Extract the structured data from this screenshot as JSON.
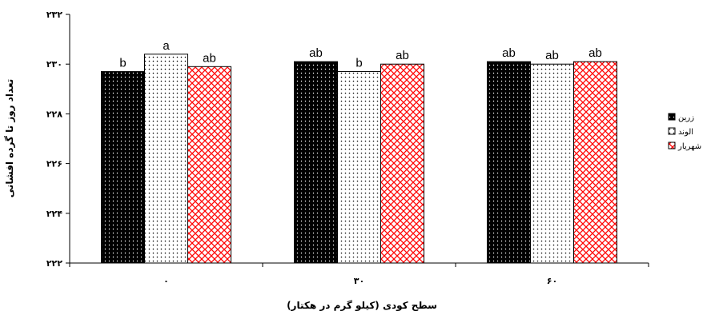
{
  "chart_data": {
    "type": "bar",
    "title": "",
    "xlabel": "سطح کودی (کیلو گرم در هکتار)",
    "ylabel": "تعداد روز تا گرده افشانی",
    "categories": [
      "۰",
      "۳۰",
      "۶۰"
    ],
    "ylim": [
      222,
      232
    ],
    "y_ticks": [
      222,
      224,
      226,
      228,
      230,
      232
    ],
    "y_tick_labels": [
      "۲۲۲",
      "۲۲۴",
      "۲۲۶",
      "۲۲۸",
      "۲۳۰",
      "۲۳۲"
    ],
    "grid": false,
    "legend_position": "right",
    "series": [
      {
        "name": "زرین",
        "values": [
          229.7,
          230.1,
          230.1
        ],
        "labels": [
          "b",
          "ab",
          "ab"
        ],
        "pattern": "dots-dark",
        "color": "#000000"
      },
      {
        "name": "الوند",
        "values": [
          230.4,
          229.7,
          230.0
        ],
        "labels": [
          "a",
          "b",
          "ab"
        ],
        "pattern": "dots-light",
        "color": "#ffffff"
      },
      {
        "name": "شهریار",
        "values": [
          229.9,
          230.0,
          230.1
        ],
        "labels": [
          "ab",
          "ab",
          "ab"
        ],
        "pattern": "red-lattice",
        "color": "#ff0000"
      }
    ]
  }
}
